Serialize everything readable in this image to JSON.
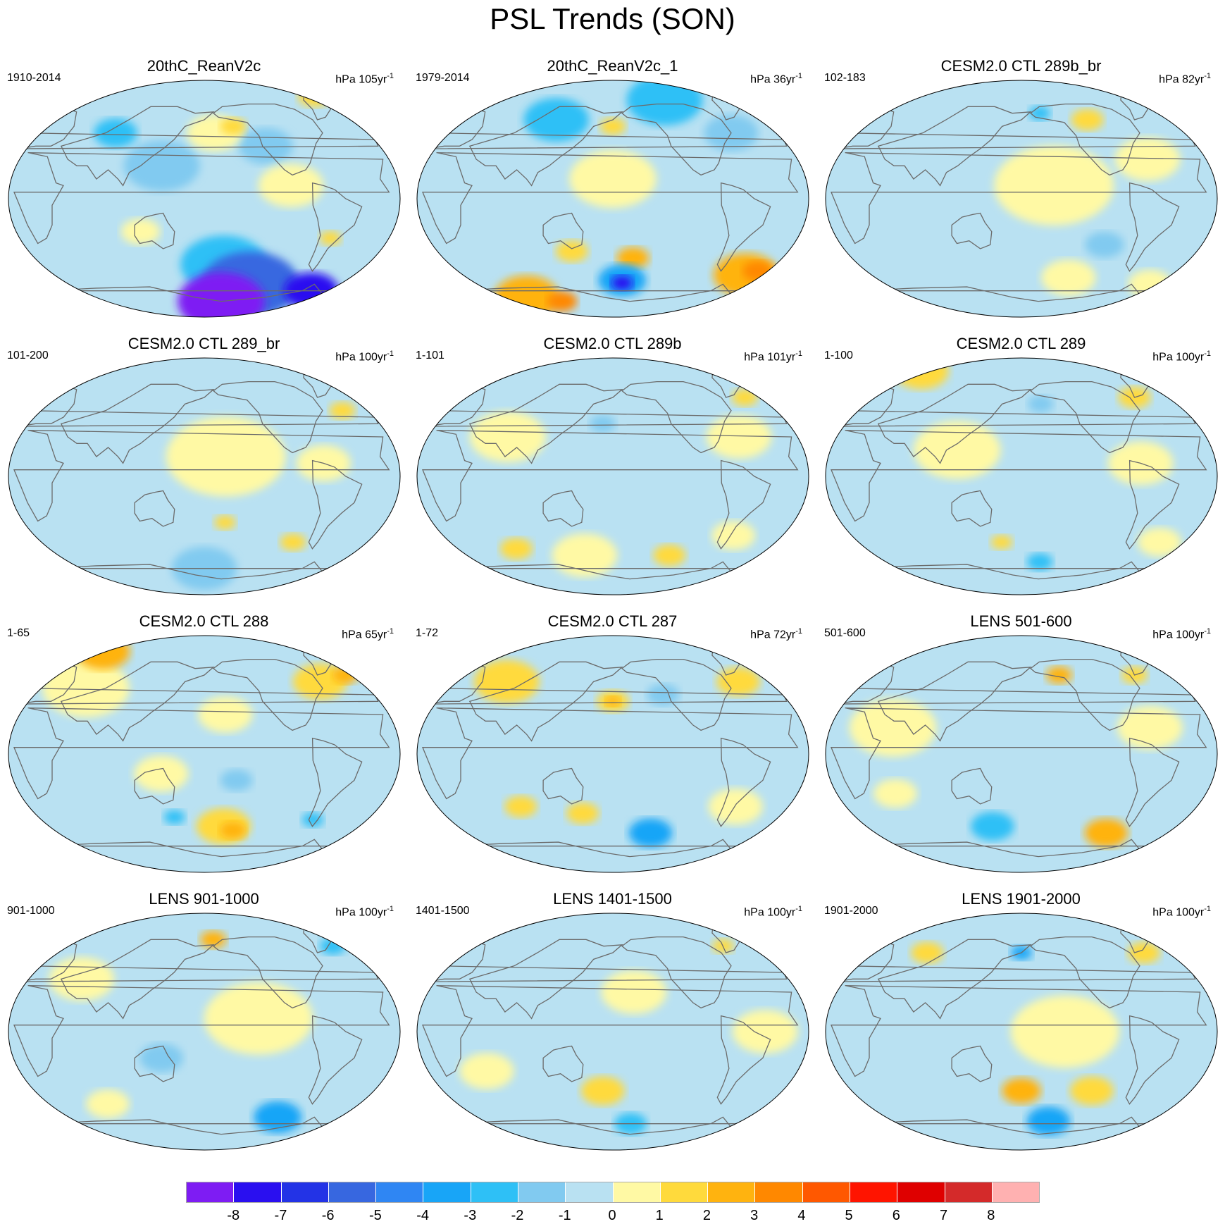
{
  "title": "PSL Trends (SON)",
  "colorbar": {
    "colors": [
      "#7e1cf3",
      "#2a0ff0",
      "#2333e6",
      "#3767e0",
      "#2f86f3",
      "#18a5f7",
      "#2ec0f6",
      "#81caf0",
      "#b9e1f2",
      "#fff9a4",
      "#ffda3c",
      "#ffb30f",
      "#ff8800",
      "#ff5800",
      "#ff1400",
      "#df0000",
      "#d42a2a",
      "#ffb1b1"
    ],
    "labels": [
      "-8",
      "-7",
      "-6",
      "-5",
      "-4",
      "-3",
      "-2",
      "-1",
      "0",
      "1",
      "2",
      "3",
      "4",
      "5",
      "6",
      "7",
      "8"
    ]
  },
  "panels": [
    {
      "title": "20thC_ReanV2c",
      "period": "1910-2014",
      "units": "hPa 105yr",
      "units_sup": "-1",
      "blobs": [
        {
          "c": -1,
          "lon": 140,
          "lat": 25,
          "r": 35
        },
        {
          "c": -1,
          "lon": 240,
          "lat": 40,
          "r": 25
        },
        {
          "c": 1,
          "lon": 190,
          "lat": 50,
          "r": 25
        },
        {
          "c": 2,
          "lon": 210,
          "lat": 55,
          "r": 12
        },
        {
          "c": 2,
          "lon": 310,
          "lat": 78,
          "r": 15
        },
        {
          "c": -2,
          "lon": 90,
          "lat": 50,
          "r": 20
        },
        {
          "c": 1,
          "lon": 260,
          "lat": 10,
          "r": 30
        },
        {
          "c": 2,
          "lon": 300,
          "lat": -30,
          "r": 10
        },
        {
          "c": 1,
          "lon": 120,
          "lat": -25,
          "r": 18
        },
        {
          "c": -2,
          "lon": 200,
          "lat": -50,
          "r": 40
        },
        {
          "c": -5,
          "lon": 230,
          "lat": -65,
          "r": 45
        },
        {
          "c": -8,
          "lon": 200,
          "lat": -78,
          "r": 40
        },
        {
          "c": -7,
          "lon": 300,
          "lat": -70,
          "r": 25
        }
      ]
    },
    {
      "title": "20thC_ReanV2c_1",
      "period": "1979-2014",
      "units": "hPa 36yr",
      "units_sup": "-1",
      "blobs": [
        {
          "c": -2,
          "lon": 120,
          "lat": 60,
          "r": 30
        },
        {
          "c": -2,
          "lon": 240,
          "lat": 75,
          "r": 35
        },
        {
          "c": 1,
          "lon": 180,
          "lat": 15,
          "r": 40
        },
        {
          "c": 2,
          "lon": 180,
          "lat": 55,
          "r": 12
        },
        {
          "c": -1,
          "lon": 300,
          "lat": 50,
          "r": 25
        },
        {
          "c": 2,
          "lon": 140,
          "lat": -40,
          "r": 15
        },
        {
          "c": 3,
          "lon": 200,
          "lat": -45,
          "r": 15
        },
        {
          "c": -3,
          "lon": 190,
          "lat": -62,
          "r": 22
        },
        {
          "c": -7,
          "lon": 190,
          "lat": -64,
          "r": 10
        },
        {
          "c": 3,
          "lon": 320,
          "lat": -58,
          "r": 30
        },
        {
          "c": 4,
          "lon": 330,
          "lat": -55,
          "r": 14
        },
        {
          "c": 3,
          "lon": 80,
          "lat": -75,
          "r": 30
        },
        {
          "c": 4,
          "lon": 120,
          "lat": -78,
          "r": 14
        }
      ]
    },
    {
      "title": "CESM2.0 CTL 289b_br",
      "period": "102-183",
      "units": "hPa 82yr",
      "units_sup": "-1",
      "blobs": [
        {
          "c": 1,
          "lon": 210,
          "lat": 10,
          "r": 55
        },
        {
          "c": 1,
          "lon": 300,
          "lat": 30,
          "r": 30
        },
        {
          "c": 2,
          "lon": 250,
          "lat": 60,
          "r": 15
        },
        {
          "c": -2,
          "lon": 200,
          "lat": 65,
          "r": 10
        },
        {
          "c": -1,
          "lon": 260,
          "lat": -35,
          "r": 18
        },
        {
          "c": 1,
          "lon": 230,
          "lat": -60,
          "r": 25
        },
        {
          "c": 1,
          "lon": 320,
          "lat": -65,
          "r": 20
        }
      ]
    },
    {
      "title": "CESM2.0 CTL 289_br",
      "period": "101-200",
      "units": "hPa 100yr",
      "units_sup": "-1",
      "blobs": [
        {
          "c": 1,
          "lon": 200,
          "lat": 15,
          "r": 55
        },
        {
          "c": 1,
          "lon": 290,
          "lat": 10,
          "r": 25
        },
        {
          "c": 2,
          "lon": 320,
          "lat": 50,
          "r": 12
        },
        {
          "c": 2,
          "lon": 200,
          "lat": -35,
          "r": 10
        },
        {
          "c": 2,
          "lon": 270,
          "lat": -50,
          "r": 12
        },
        {
          "c": -1,
          "lon": 180,
          "lat": -70,
          "r": 30
        }
      ]
    },
    {
      "title": "CESM2.0 CTL 289b",
      "period": "1-101",
      "units": "hPa 101yr",
      "units_sup": "-1",
      "blobs": [
        {
          "c": 1,
          "lon": 80,
          "lat": 30,
          "r": 35
        },
        {
          "c": 1,
          "lon": 300,
          "lat": 30,
          "r": 30
        },
        {
          "c": 2,
          "lon": 320,
          "lat": 60,
          "r": 12
        },
        {
          "c": -1,
          "lon": 170,
          "lat": 40,
          "r": 12
        },
        {
          "c": 1,
          "lon": 150,
          "lat": -60,
          "r": 30
        },
        {
          "c": 2,
          "lon": 240,
          "lat": -60,
          "r": 15
        },
        {
          "c": 2,
          "lon": 80,
          "lat": -55,
          "r": 15
        },
        {
          "c": 1,
          "lon": 300,
          "lat": -45,
          "r": 20
        }
      ]
    },
    {
      "title": "CESM2.0 CTL 289",
      "period": "1-100",
      "units": "hPa 100yr",
      "units_sup": "-1",
      "blobs": [
        {
          "c": 1,
          "lon": 120,
          "lat": 20,
          "r": 40
        },
        {
          "c": 1,
          "lon": 290,
          "lat": 10,
          "r": 30
        },
        {
          "c": 2,
          "lon": 60,
          "lat": 80,
          "r": 25
        },
        {
          "c": 2,
          "lon": 300,
          "lat": 60,
          "r": 15
        },
        {
          "c": -1,
          "lon": 200,
          "lat": 55,
          "r": 12
        },
        {
          "c": 2,
          "lon": 160,
          "lat": -50,
          "r": 10
        },
        {
          "c": -2,
          "lon": 200,
          "lat": -65,
          "r": 12
        },
        {
          "c": 1,
          "lon": 320,
          "lat": -50,
          "r": 20
        }
      ]
    },
    {
      "title": "CESM2.0 CTL 288",
      "period": "1-65",
      "units": "hPa 65yr",
      "units_sup": "-1",
      "blobs": [
        {
          "c": 1,
          "lon": 60,
          "lat": 50,
          "r": 40
        },
        {
          "c": 3,
          "lon": 60,
          "lat": 78,
          "r": 25
        },
        {
          "c": 2,
          "lon": 300,
          "lat": 55,
          "r": 25
        },
        {
          "c": 3,
          "lon": 330,
          "lat": 60,
          "r": 12
        },
        {
          "c": 1,
          "lon": 200,
          "lat": 30,
          "r": 25
        },
        {
          "c": -1,
          "lon": 210,
          "lat": -20,
          "r": 15
        },
        {
          "c": 1,
          "lon": 140,
          "lat": -15,
          "r": 25
        },
        {
          "c": 2,
          "lon": 200,
          "lat": -55,
          "r": 25
        },
        {
          "c": 3,
          "lon": 210,
          "lat": -58,
          "r": 12
        },
        {
          "c": -2,
          "lon": 150,
          "lat": -48,
          "r": 10
        },
        {
          "c": -2,
          "lon": 290,
          "lat": -50,
          "r": 10
        }
      ]
    },
    {
      "title": "CESM2.0 CTL 287",
      "period": "1-72",
      "units": "hPa 72yr",
      "units_sup": "-1",
      "blobs": [
        {
          "c": 2,
          "lon": 70,
          "lat": 55,
          "r": 30
        },
        {
          "c": 2,
          "lon": 180,
          "lat": 40,
          "r": 15
        },
        {
          "c": 3,
          "lon": 180,
          "lat": 40,
          "r": 7
        },
        {
          "c": 2,
          "lon": 310,
          "lat": 55,
          "r": 20
        },
        {
          "c": -1,
          "lon": 230,
          "lat": 45,
          "r": 15
        },
        {
          "c": 2,
          "lon": 90,
          "lat": -40,
          "r": 15
        },
        {
          "c": 2,
          "lon": 150,
          "lat": -45,
          "r": 15
        },
        {
          "c": -3,
          "lon": 220,
          "lat": -60,
          "r": 20
        },
        {
          "c": 1,
          "lon": 300,
          "lat": -40,
          "r": 25
        }
      ]
    },
    {
      "title": "LENS 501-600",
      "period": "501-600",
      "units": "hPa 100yr",
      "units_sup": "-1",
      "blobs": [
        {
          "c": 1,
          "lon": 60,
          "lat": 20,
          "r": 40
        },
        {
          "c": 1,
          "lon": 300,
          "lat": 20,
          "r": 30
        },
        {
          "c": 3,
          "lon": 220,
          "lat": 60,
          "r": 12
        },
        {
          "c": 2,
          "lon": 300,
          "lat": 60,
          "r": 12
        },
        {
          "c": -2,
          "lon": 150,
          "lat": -55,
          "r": 20
        },
        {
          "c": 3,
          "lon": 270,
          "lat": -60,
          "r": 20
        },
        {
          "c": 1,
          "lon": 60,
          "lat": -30,
          "r": 20
        }
      ]
    },
    {
      "title": "LENS 901-1000",
      "period": "901-1000",
      "units": "hPa 100yr",
      "units_sup": "-1",
      "blobs": [
        {
          "c": 1,
          "lon": 230,
          "lat": 10,
          "r": 50
        },
        {
          "c": 1,
          "lon": 60,
          "lat": 40,
          "r": 30
        },
        {
          "c": 3,
          "lon": 190,
          "lat": 70,
          "r": 12
        },
        {
          "c": -2,
          "lon": 320,
          "lat": 65,
          "r": 12
        },
        {
          "c": -1,
          "lon": 140,
          "lat": -20,
          "r": 20
        },
        {
          "c": -3,
          "lon": 260,
          "lat": -65,
          "r": 22
        },
        {
          "c": 1,
          "lon": 80,
          "lat": -55,
          "r": 20
        }
      ]
    },
    {
      "title": "LENS 1401-1500",
      "period": "1401-1500",
      "units": "hPa 100yr",
      "units_sup": "-1",
      "blobs": [
        {
          "c": 1,
          "lon": 200,
          "lat": 30,
          "r": 30
        },
        {
          "c": 1,
          "lon": 60,
          "lat": -30,
          "r": 25
        },
        {
          "c": 2,
          "lon": 170,
          "lat": -45,
          "r": 20
        },
        {
          "c": 1,
          "lon": 320,
          "lat": 0,
          "r": 30
        },
        {
          "c": -2,
          "lon": 200,
          "lat": -70,
          "r": 15
        },
        {
          "c": 2,
          "lon": 300,
          "lat": 65,
          "r": 10
        }
      ]
    },
    {
      "title": "LENS 1901-2000",
      "period": "1901-2000",
      "units": "hPa 100yr",
      "units_sup": "-1",
      "blobs": [
        {
          "c": 1,
          "lon": 220,
          "lat": 0,
          "r": 50
        },
        {
          "c": 2,
          "lon": 80,
          "lat": 60,
          "r": 15
        },
        {
          "c": 2,
          "lon": 310,
          "lat": 60,
          "r": 15
        },
        {
          "c": -3,
          "lon": 180,
          "lat": 60,
          "r": 10
        },
        {
          "c": 3,
          "lon": 180,
          "lat": -45,
          "r": 18
        },
        {
          "c": 2,
          "lon": 250,
          "lat": -45,
          "r": 20
        },
        {
          "c": -3,
          "lon": 210,
          "lat": -68,
          "r": 20
        }
      ]
    }
  ]
}
